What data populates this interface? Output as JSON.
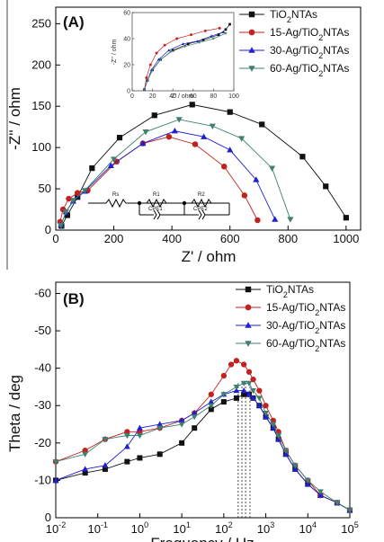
{
  "chart_data": [
    {
      "id": "A",
      "type": "scatter",
      "panel_label": "(A)",
      "xlabel": "Z' / ohm",
      "ylabel": "-Z'' / ohm",
      "xlim": [
        0,
        1050
      ],
      "ylim": [
        0,
        270
      ],
      "xticks": [
        0,
        200,
        400,
        600,
        800,
        1000
      ],
      "yticks": [
        0,
        50,
        100,
        150,
        200,
        250
      ],
      "legend_position": "top-right",
      "series": [
        {
          "name": "TiO2NTAs",
          "color": "#111111",
          "marker": "square",
          "x": [
            20,
            40,
            75,
            125,
            220,
            340,
            470,
            600,
            710,
            850,
            930,
            1000
          ],
          "y": [
            5,
            18,
            40,
            75,
            112,
            139,
            152,
            143,
            128,
            89,
            53,
            15
          ]
        },
        {
          "name": "15-Ag/TiO2NTAs",
          "color": "#c0231f",
          "marker": "circle",
          "x": [
            15,
            25,
            45,
            75,
            110,
            210,
            300,
            390,
            480,
            580,
            650,
            695
          ],
          "y": [
            10,
            25,
            38,
            45,
            48,
            83,
            105,
            113,
            104,
            77,
            42,
            12
          ]
        },
        {
          "name": "30-Ag/TiO2NTAs",
          "color": "#1f1fd0",
          "marker": "triangle-up",
          "x": [
            18,
            35,
            60,
            100,
            190,
            300,
            410,
            510,
            600,
            690,
            755
          ],
          "y": [
            6,
            22,
            35,
            47,
            78,
            105,
            120,
            113,
            97,
            61,
            13
          ]
        },
        {
          "name": "60-Ag/TiO2NTAs",
          "color": "#3f7f70",
          "marker": "triangle-down",
          "x": [
            18,
            35,
            60,
            100,
            200,
            310,
            425,
            540,
            640,
            745,
            808
          ],
          "y": [
            6,
            22,
            36,
            48,
            86,
            119,
            134,
            126,
            111,
            75,
            13
          ]
        }
      ],
      "inset": {
        "xlabel": "Z' / ohm",
        "ylabel": "-Z'' / ohm",
        "xlim": [
          0,
          100
        ],
        "ylim": [
          0,
          60
        ],
        "xticks": [
          0,
          20,
          40,
          60,
          80,
          100
        ],
        "yticks": [
          0,
          20,
          40,
          60
        ],
        "series": [
          {
            "name": "TiO2NTAs",
            "color": "#111111",
            "marker": "square",
            "x": [
              12,
              15,
              20,
              28,
              40,
              55,
              70,
              85,
              92,
              96
            ],
            "y": [
              1,
              8,
              16,
              24,
              31,
              36,
              39,
              43,
              47,
              51
            ]
          },
          {
            "name": "15-Ag/TiO2NTAs",
            "color": "#c0231f",
            "marker": "circle",
            "x": [
              12,
              14,
              18,
              24,
              32,
              44,
              58,
              72,
              86
            ],
            "y": [
              1,
              10,
              20,
              29,
              35,
              40,
              43,
              46,
              48
            ]
          },
          {
            "name": "30-Ag/TiO2NTAs",
            "color": "#1f1fd0",
            "marker": "triangle-up",
            "x": [
              12,
              15,
              19,
              26,
              36,
              50,
              64,
              78,
              90
            ],
            "y": [
              1,
              8,
              16,
              24,
              31,
              36,
              38,
              42,
              45
            ]
          },
          {
            "name": "60-Ag/TiO2NTAs",
            "color": "#3f7f70",
            "marker": "triangle-down",
            "x": [
              12,
              15,
              20,
              28,
              38,
              52,
              66,
              80,
              92
            ],
            "y": [
              1,
              8,
              16,
              24,
              30,
              34,
              37,
              40,
              44
            ]
          }
        ]
      },
      "circuit": {
        "labels": [
          "Rs",
          "R1",
          "CPE1",
          "R2",
          "CPE2"
        ]
      }
    },
    {
      "id": "B",
      "type": "line",
      "panel_label": "(B)",
      "xlabel": "Frequency / Hz",
      "ylabel": "Theta / deg",
      "xscale": "log",
      "xlim": [
        0.01,
        100000
      ],
      "ylim": [
        0,
        -63
      ],
      "yticks": [
        0,
        -10,
        -20,
        -30,
        -40,
        -50,
        -60
      ],
      "xtick_exponents": [
        -2,
        -1,
        0,
        1,
        2,
        3,
        4,
        5
      ],
      "xtick_base": "10",
      "legend_position": "top-right",
      "peak_frequencies": [
        220,
        270,
        330,
        420
      ],
      "series": [
        {
          "name": "TiO2NTAs",
          "color": "#111111",
          "marker": "square",
          "x": [
            0.01,
            0.05,
            0.15,
            0.5,
            1,
            3,
            10,
            20,
            50,
            100,
            200,
            300,
            400,
            500,
            700,
            1000,
            1500,
            2000,
            3000,
            5000,
            10000,
            20000,
            50000,
            100000
          ],
          "y": [
            -10,
            -12,
            -13,
            -15,
            -16,
            -17,
            -20,
            -24,
            -29,
            -31,
            -32,
            -33,
            -33,
            -32,
            -30,
            -27,
            -24,
            -21,
            -17,
            -13,
            -9,
            -6,
            -4,
            -2
          ]
        },
        {
          "name": "15-Ag/TiO2NTAs",
          "color": "#c0231f",
          "marker": "circle",
          "x": [
            0.01,
            0.05,
            0.15,
            0.5,
            1,
            3,
            10,
            20,
            50,
            100,
            150,
            200,
            300,
            400,
            500,
            700,
            1000,
            1500,
            2000,
            3000,
            5000,
            10000,
            20000,
            50000,
            100000
          ],
          "y": [
            -15,
            -18,
            -21,
            -23,
            -23,
            -24,
            -26,
            -28,
            -33,
            -38,
            -41,
            -42,
            -41,
            -39,
            -37,
            -34,
            -30,
            -26,
            -23,
            -18,
            -14,
            -10,
            -6,
            -4,
            -2
          ]
        },
        {
          "name": "30-Ag/TiO2NTAs",
          "color": "#1f1fd0",
          "marker": "triangle-up",
          "x": [
            0.01,
            0.05,
            0.15,
            0.5,
            1,
            3,
            10,
            20,
            50,
            100,
            200,
            300,
            400,
            500,
            700,
            1000,
            1500,
            2000,
            3000,
            5000,
            10000,
            20000,
            50000,
            100000
          ],
          "y": [
            -10,
            -13,
            -14,
            -19,
            -24,
            -25,
            -26,
            -28,
            -31,
            -33,
            -34,
            -34,
            -33,
            -32,
            -30,
            -27,
            -24,
            -21,
            -17,
            -13,
            -9,
            -6,
            -4,
            -2
          ]
        },
        {
          "name": "60-Ag/TiO2NTAs",
          "color": "#3f7f70",
          "marker": "triangle-down",
          "x": [
            0.01,
            0.05,
            0.15,
            0.5,
            1,
            3,
            10,
            20,
            50,
            100,
            200,
            300,
            400,
            500,
            700,
            1000,
            1500,
            2000,
            3000,
            5000,
            10000,
            20000,
            50000,
            100000
          ],
          "y": [
            -15,
            -17,
            -21,
            -22,
            -22,
            -24,
            -25,
            -27,
            -30,
            -33,
            -35,
            -36,
            -36,
            -34,
            -32,
            -28,
            -25,
            -22,
            -18,
            -14,
            -10,
            -7,
            -4,
            -2
          ]
        }
      ]
    }
  ]
}
